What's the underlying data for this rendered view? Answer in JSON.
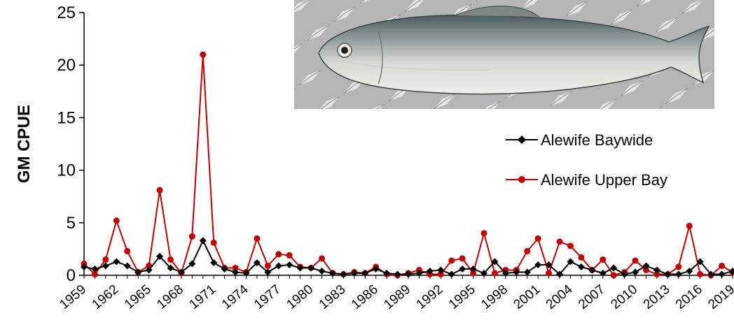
{
  "chart_data": {
    "type": "line",
    "ylabel": "GM CPUE",
    "xlabel": "",
    "ylim": [
      0,
      25
    ],
    "yticks": [
      0,
      5,
      10,
      15,
      20,
      25
    ],
    "xlim": [
      1959,
      2019
    ],
    "xticks": [
      1959,
      1962,
      1965,
      1968,
      1971,
      1974,
      1977,
      1980,
      1983,
      1986,
      1989,
      1992,
      1995,
      1998,
      2001,
      2004,
      2007,
      2010,
      2013,
      2016,
      2019
    ],
    "x": [
      1959,
      1960,
      1961,
      1962,
      1963,
      1964,
      1965,
      1966,
      1967,
      1968,
      1969,
      1970,
      1971,
      1972,
      1973,
      1974,
      1975,
      1976,
      1977,
      1978,
      1979,
      1980,
      1981,
      1982,
      1983,
      1984,
      1985,
      1986,
      1987,
      1988,
      1989,
      1990,
      1991,
      1992,
      1993,
      1994,
      1995,
      1996,
      1997,
      1998,
      1999,
      2000,
      2001,
      2002,
      2003,
      2004,
      2005,
      2006,
      2007,
      2008,
      2009,
      2010,
      2011,
      2012,
      2013,
      2014,
      2015,
      2016,
      2017,
      2018,
      2019
    ],
    "series": [
      {
        "name": "Alewife Baywide",
        "color": "#000000",
        "marker": "diamond",
        "values": [
          0.8,
          0.6,
          0.9,
          1.3,
          0.9,
          0.3,
          0.5,
          1.8,
          0.7,
          0.3,
          1.1,
          3.3,
          1.2,
          0.6,
          0.3,
          0.2,
          1.2,
          0.3,
          0.9,
          1.0,
          0.7,
          0.7,
          0.4,
          0.2,
          0.1,
          0.2,
          0.2,
          0.6,
          0.2,
          0.1,
          0.1,
          0.2,
          0.4,
          0.5,
          0.1,
          0.6,
          0.6,
          0.2,
          1.3,
          0.2,
          0.3,
          0.3,
          1.0,
          1.0,
          0.1,
          1.3,
          0.8,
          0.5,
          0.2,
          0.7,
          0.1,
          0.3,
          0.9,
          0.5,
          0.1,
          0.1,
          0.4,
          1.3,
          0.1,
          0.1,
          0.4
        ]
      },
      {
        "name": "Alewife Upper Bay",
        "color": "#c00000",
        "marker": "circle",
        "values": [
          1.1,
          0.1,
          1.5,
          5.2,
          2.3,
          0.3,
          0.9,
          8.1,
          1.5,
          0.2,
          3.7,
          21.0,
          3.1,
          0.7,
          0.7,
          0.3,
          3.5,
          0.9,
          2.0,
          1.9,
          0.8,
          0.7,
          1.6,
          0.2,
          0.1,
          0.3,
          0.2,
          0.8,
          0.1,
          0.0,
          0.2,
          0.5,
          0.1,
          0.1,
          1.4,
          1.6,
          0.2,
          4.0,
          0.2,
          0.5,
          0.5,
          2.3,
          3.5,
          0.2,
          3.2,
          2.8,
          1.7,
          0.5,
          1.5,
          0.0,
          0.3,
          1.4,
          0.5,
          0.1,
          0.1,
          0.8,
          4.7,
          0.1,
          0.0,
          0.9,
          0.3
        ]
      }
    ],
    "legend": {
      "position": "right-middle"
    },
    "grid": false
  },
  "image": {
    "description": "photo of alewife fish on diamond plate",
    "icon": "fish-photo"
  }
}
